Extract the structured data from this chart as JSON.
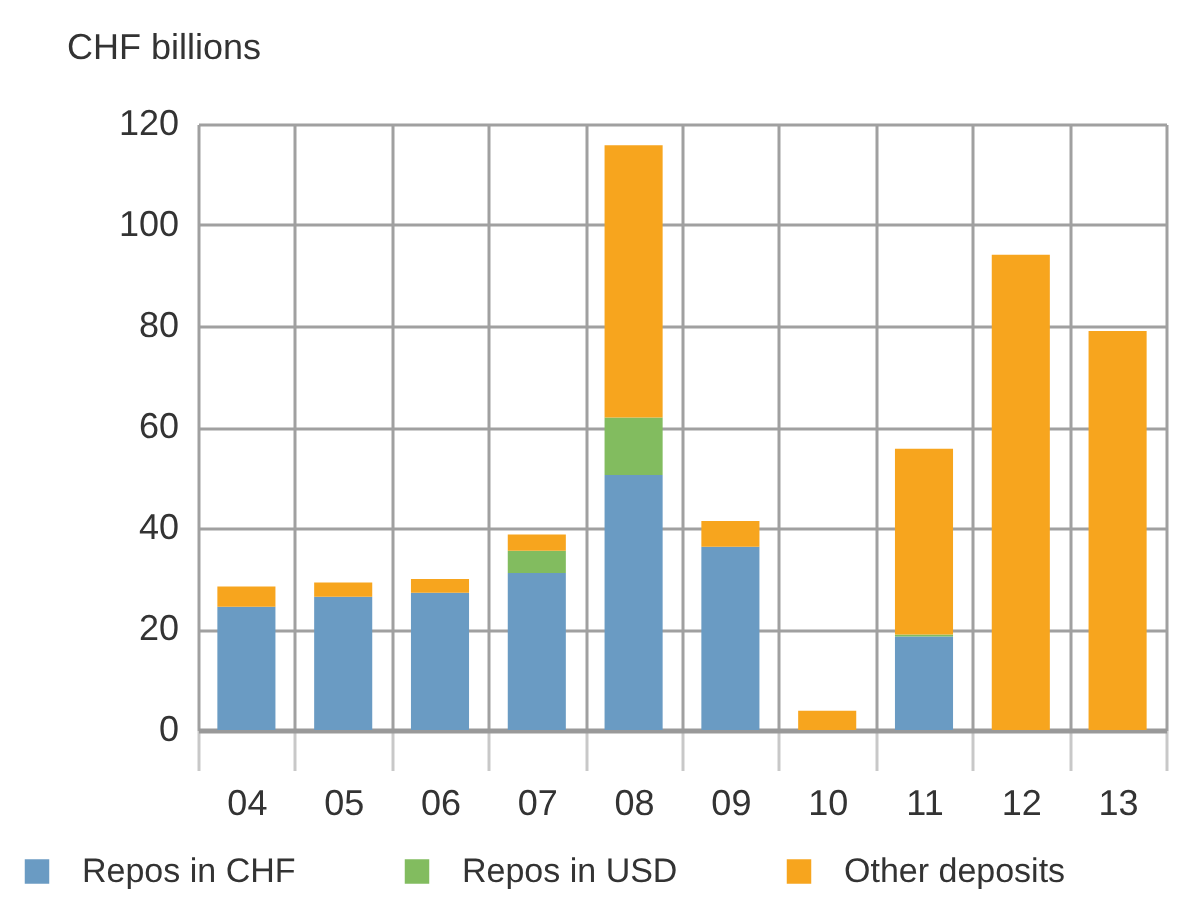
{
  "chart_data": {
    "type": "bar",
    "stacked": true,
    "ylabel": "CHF billions",
    "categories": [
      "04",
      "05",
      "06",
      "07",
      "08",
      "09",
      "10",
      "11",
      "12",
      "13"
    ],
    "series": [
      {
        "name": "Repos in CHF",
        "color": "#6a9bc3",
        "values": [
          24.4,
          26.4,
          27.2,
          31.1,
          50.5,
          36.3,
          0,
          18.5,
          0,
          0
        ]
      },
      {
        "name": "Repos in USD",
        "color": "#82bc5f",
        "values": [
          0,
          0,
          0,
          4.4,
          11.4,
          0,
          0,
          0.4,
          0,
          0
        ]
      },
      {
        "name": "Other deposits",
        "color": "#f7a51e",
        "values": [
          4.0,
          2.8,
          2.7,
          3.2,
          53.9,
          5.1,
          3.8,
          36.8,
          94.1,
          79.0
        ]
      }
    ],
    "ylim": [
      0,
      120
    ],
    "yticks": [
      0,
      20,
      40,
      60,
      80,
      100,
      120
    ],
    "grid": true,
    "legend": "bottom"
  }
}
